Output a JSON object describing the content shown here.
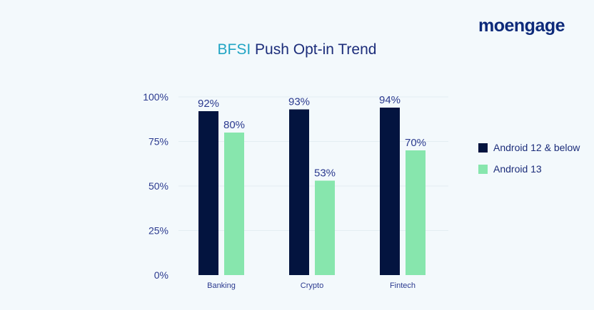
{
  "brand": "moengage",
  "title": {
    "accent": "BFSI",
    "rest": "Push Opt-in Trend"
  },
  "colors": {
    "Android 12 & below": "#03143f",
    "Android 13": "#87e6ad",
    "text": "#2b3a8f",
    "accent": "#21a5c4"
  },
  "chart_data": {
    "type": "bar",
    "categories": [
      "Banking",
      "Crypto",
      "Fintech"
    ],
    "series": [
      {
        "name": "Android 12 & below",
        "values": [
          92,
          93,
          94
        ],
        "labels": [
          "92%",
          "93%",
          "94%"
        ]
      },
      {
        "name": "Android 13",
        "values": [
          80,
          53,
          70
        ],
        "labels": [
          "80%",
          "53%",
          "70%"
        ]
      }
    ],
    "yticks": [
      "0%",
      "25%",
      "50%",
      "75%",
      "100%"
    ],
    "ylim": [
      0,
      100
    ],
    "grid": true,
    "legend": "right"
  }
}
